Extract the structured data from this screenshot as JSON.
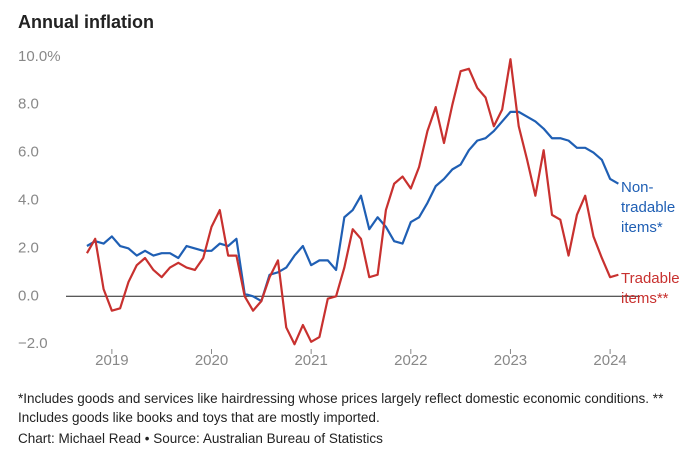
{
  "chart_data": {
    "type": "line",
    "title": "Annual inflation",
    "x": [
      2018.75,
      2018.833,
      2018.917,
      2019,
      2019.083,
      2019.167,
      2019.25,
      2019.333,
      2019.417,
      2019.5,
      2019.583,
      2019.667,
      2019.75,
      2019.833,
      2019.917,
      2020,
      2020.083,
      2020.167,
      2020.25,
      2020.333,
      2020.417,
      2020.5,
      2020.583,
      2020.667,
      2020.75,
      2020.833,
      2020.917,
      2021,
      2021.083,
      2021.167,
      2021.25,
      2021.333,
      2021.417,
      2021.5,
      2021.583,
      2021.667,
      2021.75,
      2021.833,
      2021.917,
      2022,
      2022.083,
      2022.167,
      2022.25,
      2022.333,
      2022.417,
      2022.5,
      2022.583,
      2022.667,
      2022.75,
      2022.833,
      2022.917,
      2023,
      2023.083,
      2023.167,
      2023.25,
      2023.333,
      2023.417,
      2023.5,
      2023.583,
      2023.667,
      2023.75,
      2023.833,
      2023.917,
      2024,
      2024.083
    ],
    "series": [
      {
        "name": "Non-tradable items*",
        "color": "#1f5fb4",
        "values": [
          2.1,
          2.3,
          2.2,
          2.5,
          2.1,
          2.0,
          1.7,
          1.9,
          1.7,
          1.8,
          1.8,
          1.6,
          2.1,
          2.0,
          1.9,
          1.9,
          2.2,
          2.1,
          2.4,
          0.1,
          0.0,
          -0.2,
          0.9,
          1.0,
          1.2,
          1.7,
          2.1,
          1.3,
          1.5,
          1.5,
          1.1,
          3.3,
          3.6,
          4.2,
          2.8,
          3.3,
          2.9,
          2.3,
          2.2,
          3.1,
          3.3,
          3.9,
          4.6,
          4.9,
          5.3,
          5.5,
          6.1,
          6.5,
          6.6,
          6.9,
          7.3,
          7.7,
          7.7,
          7.5,
          7.3,
          7.0,
          6.6,
          6.6,
          6.5,
          6.2,
          6.2,
          6.0,
          5.7,
          4.9,
          4.7
        ]
      },
      {
        "name": "Tradable items**",
        "color": "#c8312f",
        "values": [
          1.8,
          2.4,
          0.3,
          -0.6,
          -0.5,
          0.6,
          1.3,
          1.6,
          1.1,
          0.8,
          1.2,
          1.4,
          1.2,
          1.1,
          1.6,
          2.9,
          3.6,
          1.7,
          1.7,
          0.0,
          -0.6,
          -0.2,
          0.8,
          1.5,
          -1.3,
          -2.0,
          -1.2,
          -1.9,
          -1.7,
          -0.1,
          0.0,
          1.2,
          2.8,
          2.4,
          0.8,
          0.9,
          3.6,
          4.7,
          5.0,
          4.5,
          5.4,
          6.9,
          7.9,
          6.4,
          8.0,
          9.4,
          9.5,
          8.7,
          8.3,
          7.1,
          7.8,
          9.9,
          7.1,
          5.7,
          4.2,
          6.1,
          3.4,
          3.2,
          1.7,
          3.4,
          4.2,
          2.5,
          1.6,
          0.8,
          0.9
        ]
      }
    ],
    "xlim": [
      2018.6,
      2024.3
    ],
    "xticks": [
      2019,
      2020,
      2021,
      2022,
      2023,
      2024
    ],
    "ylim": [
      -2.2,
      10.2
    ],
    "yticks": [
      {
        "value": -2,
        "label": "−2.0"
      },
      {
        "value": 0,
        "label": "0.0"
      },
      {
        "value": 2,
        "label": "2.0"
      },
      {
        "value": 4,
        "label": "4.0"
      },
      {
        "value": 6,
        "label": "6.0"
      },
      {
        "value": 8,
        "label": "8.0"
      },
      {
        "value": 10,
        "label": "10.0%"
      }
    ],
    "zero_line": true,
    "footnote": "*Includes goods and services like hairdressing whose prices largely reflect domestic economic conditions. ** Includes goods like books and toys that are mostly imported.",
    "source": "Chart: Michael Read • Source: Australian Bureau of Statistics"
  }
}
